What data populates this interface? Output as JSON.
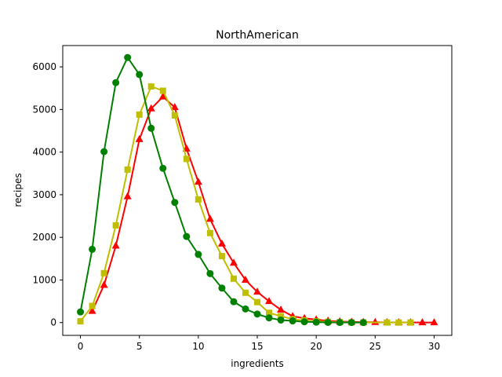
{
  "chart_data": {
    "type": "line",
    "title": "NorthAmerican",
    "xlabel": "ingredients",
    "ylabel": "recipes",
    "xlim": [
      -1.5,
      31.5
    ],
    "ylim": [
      -300,
      6500
    ],
    "xticks": [
      0,
      5,
      10,
      15,
      20,
      25,
      30
    ],
    "yticks": [
      0,
      1000,
      2000,
      3000,
      4000,
      5000,
      6000
    ],
    "grid": false,
    "series": [
      {
        "color": "#ff0000",
        "marker": "triangle",
        "x": [
          1,
          2,
          3,
          4,
          5,
          6,
          7,
          8,
          9,
          10,
          11,
          12,
          13,
          14,
          15,
          16,
          17,
          18,
          19,
          20,
          21,
          22,
          23,
          24,
          25,
          26,
          27,
          28,
          29,
          30
        ],
        "y": [
          270,
          880,
          1800,
          2960,
          4300,
          5020,
          5300,
          5050,
          4080,
          3300,
          2430,
          1850,
          1400,
          1000,
          720,
          500,
          300,
          150,
          100,
          70,
          40,
          25,
          15,
          10,
          8,
          5,
          4,
          3,
          2,
          1
        ]
      },
      {
        "color": "#bfbf00",
        "marker": "square",
        "x": [
          0,
          1,
          2,
          3,
          4,
          5,
          6,
          7,
          8,
          9,
          10,
          11,
          12,
          13,
          14,
          15,
          16,
          17,
          18,
          19,
          20,
          21,
          22,
          23,
          24,
          26,
          27,
          28
        ],
        "y": [
          30,
          390,
          1160,
          2280,
          3590,
          4880,
          5540,
          5440,
          4860,
          3840,
          2890,
          2100,
          1560,
          1030,
          700,
          480,
          230,
          150,
          80,
          50,
          30,
          20,
          10,
          5,
          3,
          2,
          1,
          1
        ]
      },
      {
        "color": "#008000",
        "marker": "circle",
        "x": [
          0,
          1,
          2,
          3,
          4,
          5,
          6,
          7,
          8,
          9,
          10,
          11,
          12,
          13,
          14,
          15,
          16,
          17,
          18,
          19,
          20,
          21,
          22,
          23,
          24
        ],
        "y": [
          250,
          1720,
          4010,
          5630,
          6220,
          5820,
          4560,
          3620,
          2820,
          2020,
          1600,
          1150,
          810,
          490,
          320,
          200,
          110,
          60,
          40,
          20,
          10,
          5,
          3,
          2,
          1
        ]
      }
    ]
  }
}
